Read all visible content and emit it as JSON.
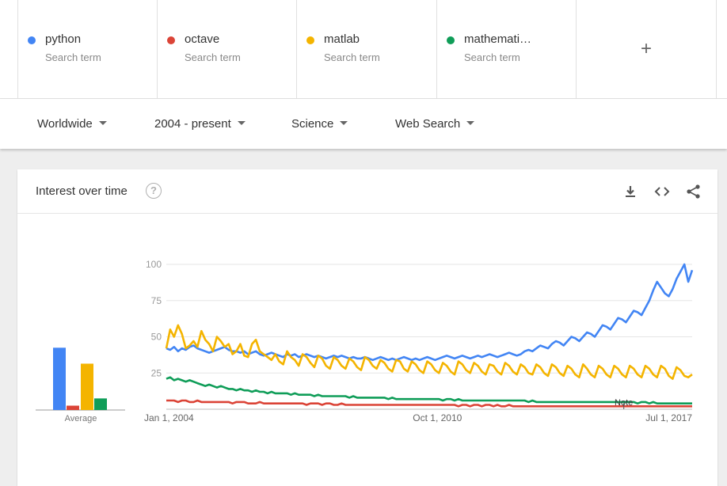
{
  "search_terms": [
    {
      "name": "python",
      "sub": "Search term",
      "color": "#4285f4"
    },
    {
      "name": "octave",
      "sub": "Search term",
      "color": "#db4437"
    },
    {
      "name": "matlab",
      "sub": "Search term",
      "color": "#f4b400"
    },
    {
      "name": "mathemati…",
      "sub": "Search term",
      "color": "#0f9d58"
    }
  ],
  "add_term_icon": "plus-icon",
  "filters": {
    "region": "Worldwide",
    "time": "2004 - present",
    "category": "Science",
    "search_type": "Web Search"
  },
  "card": {
    "title": "Interest over time",
    "help_icon": "?",
    "icons": [
      "download-icon",
      "embed-code-icon",
      "share-icon"
    ]
  },
  "chart_data": {
    "type": "line",
    "ylim": [
      0,
      100
    ],
    "yticks": [
      "100",
      "75",
      "50",
      "25"
    ],
    "xticks": [
      "Jan 1, 2004",
      "Oct 1, 2010",
      "Jul 1, 2017"
    ],
    "note_label": "Note",
    "average": {
      "label": "Average",
      "values": [
        43,
        3,
        32,
        8
      ]
    },
    "series": [
      {
        "name": "python",
        "color": "#4285f4",
        "values": [
          42,
          41,
          43,
          40,
          42,
          41,
          43,
          44,
          42,
          41,
          40,
          39,
          40,
          41,
          42,
          43,
          41,
          40,
          40,
          39,
          40,
          38,
          39,
          40,
          38,
          37,
          38,
          39,
          38,
          37,
          36,
          38,
          37,
          38,
          36,
          37,
          38,
          37,
          36,
          37,
          36,
          35,
          36,
          37,
          36,
          37,
          36,
          35,
          36,
          35,
          35,
          36,
          35,
          34,
          35,
          36,
          35,
          34,
          35,
          34,
          35,
          36,
          35,
          34,
          35,
          34,
          35,
          36,
          35,
          34,
          35,
          36,
          37,
          36,
          35,
          36,
          37,
          36,
          35,
          36,
          37,
          36,
          37,
          38,
          37,
          36,
          37,
          38,
          39,
          38,
          37,
          38,
          40,
          41,
          40,
          42,
          44,
          43,
          42,
          45,
          47,
          46,
          44,
          47,
          50,
          49,
          47,
          50,
          53,
          52,
          50,
          54,
          58,
          57,
          55,
          59,
          63,
          62,
          60,
          64,
          68,
          67,
          65,
          70,
          75,
          82,
          88,
          84,
          80,
          78,
          83,
          90,
          95,
          100,
          88,
          96
        ]
      },
      {
        "name": "octave",
        "color": "#db4437",
        "values": [
          6,
          6,
          6,
          5,
          6,
          6,
          5,
          5,
          6,
          5,
          5,
          5,
          5,
          5,
          5,
          5,
          5,
          4,
          5,
          5,
          5,
          4,
          4,
          4,
          5,
          4,
          4,
          4,
          4,
          4,
          4,
          4,
          4,
          4,
          4,
          4,
          3,
          4,
          4,
          4,
          3,
          4,
          4,
          3,
          3,
          4,
          3,
          3,
          3,
          3,
          3,
          3,
          3,
          3,
          3,
          3,
          3,
          3,
          3,
          3,
          3,
          3,
          3,
          3,
          3,
          3,
          3,
          3,
          3,
          3,
          3,
          3,
          3,
          3,
          3,
          2,
          3,
          3,
          2,
          3,
          3,
          2,
          3,
          3,
          2,
          3,
          2,
          2,
          3,
          2,
          2,
          2,
          2,
          2,
          2,
          2,
          2,
          2,
          2,
          2,
          2,
          2,
          2,
          2,
          2,
          2,
          2,
          2,
          2,
          2,
          2,
          2,
          2,
          2,
          2,
          2,
          2,
          2,
          2,
          2,
          2,
          2,
          2,
          2,
          2,
          2,
          2,
          2,
          2,
          2,
          2,
          2,
          2,
          2,
          2,
          2
        ]
      },
      {
        "name": "matlab",
        "color": "#f4b400",
        "values": [
          42,
          55,
          50,
          58,
          52,
          42,
          44,
          47,
          43,
          54,
          48,
          45,
          40,
          50,
          47,
          43,
          45,
          38,
          40,
          45,
          37,
          36,
          45,
          48,
          40,
          38,
          36,
          34,
          38,
          33,
          31,
          40,
          36,
          34,
          30,
          38,
          36,
          32,
          29,
          37,
          35,
          30,
          28,
          36,
          34,
          30,
          28,
          35,
          33,
          29,
          27,
          36,
          34,
          30,
          28,
          34,
          32,
          28,
          26,
          34,
          33,
          28,
          26,
          33,
          31,
          27,
          25,
          33,
          31,
          27,
          25,
          32,
          30,
          26,
          24,
          33,
          31,
          27,
          25,
          32,
          30,
          26,
          24,
          31,
          30,
          26,
          24,
          32,
          30,
          26,
          24,
          31,
          29,
          25,
          24,
          31,
          29,
          25,
          23,
          31,
          29,
          25,
          23,
          30,
          28,
          24,
          22,
          31,
          28,
          24,
          22,
          30,
          28,
          24,
          22,
          30,
          28,
          24,
          22,
          30,
          28,
          24,
          22,
          30,
          28,
          24,
          22,
          30,
          28,
          23,
          21,
          29,
          27,
          23,
          22,
          24
        ]
      },
      {
        "name": "mathematica",
        "color": "#0f9d58",
        "values": [
          21,
          22,
          20,
          21,
          20,
          19,
          20,
          19,
          18,
          17,
          16,
          17,
          16,
          15,
          16,
          15,
          14,
          14,
          13,
          14,
          13,
          13,
          12,
          13,
          12,
          12,
          11,
          12,
          11,
          11,
          11,
          11,
          10,
          11,
          10,
          10,
          10,
          10,
          9,
          10,
          9,
          9,
          9,
          9,
          9,
          9,
          9,
          8,
          9,
          8,
          8,
          8,
          8,
          8,
          8,
          8,
          8,
          7,
          8,
          7,
          7,
          7,
          7,
          7,
          7,
          7,
          7,
          7,
          7,
          7,
          7,
          6,
          7,
          7,
          6,
          7,
          6,
          6,
          6,
          6,
          6,
          6,
          6,
          6,
          6,
          6,
          6,
          6,
          6,
          6,
          6,
          6,
          6,
          5,
          6,
          5,
          5,
          5,
          5,
          5,
          5,
          5,
          5,
          5,
          5,
          5,
          5,
          5,
          5,
          5,
          5,
          5,
          5,
          5,
          5,
          5,
          5,
          5,
          5,
          5,
          5,
          4,
          5,
          5,
          4,
          5,
          4,
          4,
          4,
          4,
          4,
          4,
          4,
          4,
          4,
          4
        ]
      }
    ]
  }
}
